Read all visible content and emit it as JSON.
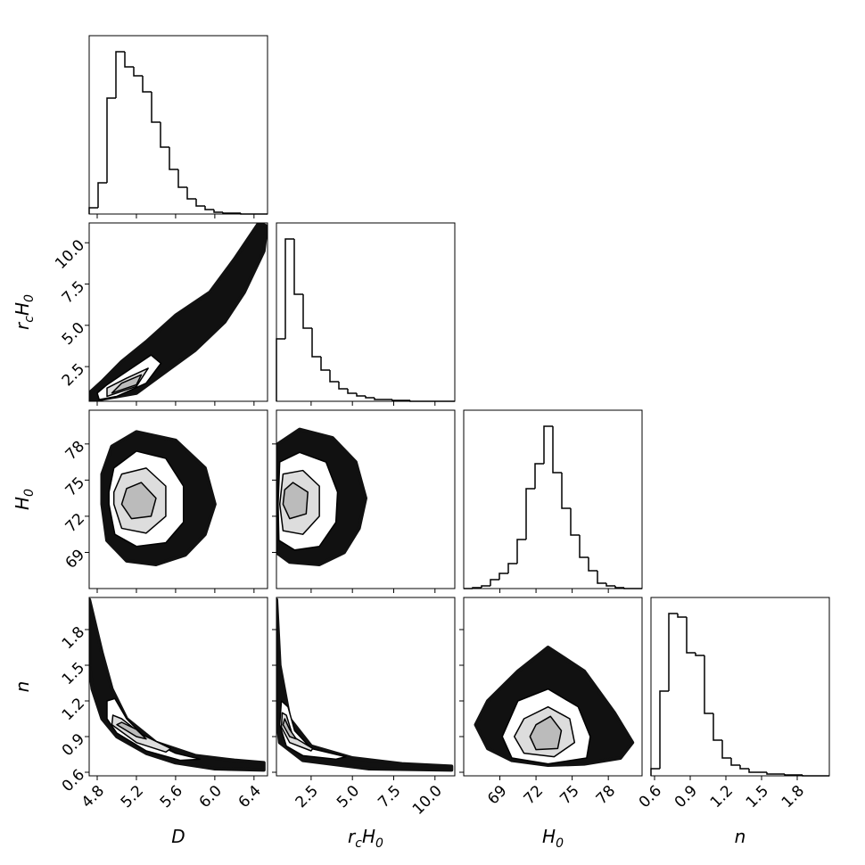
{
  "chart_data": {
    "type": "corner",
    "line_color": "#000000",
    "cloud_color": "#111111",
    "contour_fills": [
      "#ffffff",
      "#dddddd",
      "#bbbbbb"
    ],
    "parameters": [
      {
        "label": [
          {
            "text": "D"
          }
        ],
        "lim": [
          4.718,
          6.538
        ],
        "ticks": [
          4.8,
          5.2,
          5.6,
          {
            "value": 6,
            "label": "6.0"
          },
          6.4
        ],
        "hist": {
          "bins": [
            4.718,
            4.809,
            4.9,
            4.991,
            5.082,
            5.173,
            5.264,
            5.355,
            5.446,
            5.537,
            5.628,
            5.719,
            5.81,
            5.901,
            5.992,
            6.083,
            6.174,
            6.265,
            6.356,
            6.447,
            6.538
          ],
          "counts": [
            7,
            35,
            130,
            182,
            165,
            155,
            137,
            103,
            75,
            50,
            30,
            17,
            9,
            5,
            2,
            1,
            1,
            0,
            0,
            0
          ],
          "ylim": [
            0,
            200
          ]
        }
      },
      {
        "label": [
          {
            "text": "r",
            "sub": "c"
          },
          {
            "text": "H",
            "sub": "0"
          }
        ],
        "lim": [
          0.4,
          11.2
        ],
        "ticks": [
          2.5,
          {
            "value": 5,
            "label": "5.0"
          },
          7.5,
          {
            "value": 10,
            "label": "10.0"
          }
        ],
        "hist": {
          "bins": [
            0.4,
            0.94,
            1.48,
            2.02,
            2.56,
            3.1,
            3.64,
            4.18,
            4.72,
            5.26,
            5.8,
            6.34,
            6.88,
            7.42,
            7.96,
            8.5,
            9.04,
            9.58,
            10.12,
            10.66,
            11.2
          ],
          "counts": [
            70,
            182,
            120,
            82,
            50,
            35,
            22,
            14,
            9,
            6,
            4,
            2,
            2,
            1,
            1,
            0,
            0,
            0,
            0,
            0
          ],
          "ylim": [
            0,
            200
          ]
        }
      },
      {
        "label": [
          {
            "text": "H",
            "sub": "0"
          }
        ],
        "lim": [
          66,
          80.8
        ],
        "ticks": [
          69,
          72,
          75,
          78
        ],
        "hist": {
          "bins": [
            66,
            66.74,
            67.48,
            68.22,
            68.96,
            69.7,
            70.44,
            71.18,
            71.92,
            72.66,
            73.4,
            74.14,
            74.88,
            75.62,
            76.36,
            77.1,
            77.84,
            78.58,
            79.32,
            80.06,
            80.8
          ],
          "counts": [
            0,
            1,
            3,
            10,
            17,
            28,
            55,
            112,
            140,
            182,
            130,
            90,
            60,
            35,
            20,
            6,
            3,
            1,
            0,
            0
          ],
          "ylim": [
            0,
            200
          ]
        }
      },
      {
        "label": [
          {
            "text": "n"
          }
        ],
        "lim": [
          0.57,
          2.07
        ],
        "ticks": [
          0.6,
          0.9,
          1.2,
          1.5,
          1.8
        ],
        "hist": {
          "bins": [
            0.57,
            0.645,
            0.72,
            0.795,
            0.87,
            0.945,
            1.02,
            1.095,
            1.17,
            1.245,
            1.32,
            1.395,
            1.47,
            1.545,
            1.62,
            1.695,
            1.77,
            1.845,
            1.92,
            1.995,
            2.07
          ],
          "counts": [
            8,
            95,
            182,
            178,
            138,
            135,
            70,
            40,
            20,
            12,
            8,
            4,
            4,
            2,
            2,
            1,
            1,
            0,
            0,
            0
          ],
          "ylim": [
            0,
            200
          ]
        }
      }
    ],
    "pairs": [
      {
        "cloud": {
          "x": [
            4.72,
            5.2,
            5.5,
            5.8,
            6.1,
            6.3,
            6.5,
            6.53,
            6.45,
            6.2,
            5.95,
            5.6,
            5.3,
            5.05,
            4.85,
            4.72
          ],
          "y": [
            0.4,
            0.9,
            2.2,
            3.5,
            5.2,
            7,
            9.5,
            11,
            11.2,
            9,
            7,
            5.6,
            4,
            2.8,
            1.6,
            0.9
          ]
        },
        "contours": [
          {
            "x": [
              4.82,
              5,
              5.3,
              5.45,
              5.35,
              5.1,
              4.9,
              4.8
            ],
            "y": [
              0.5,
              0.7,
              1.5,
              2.7,
              3.2,
              2.2,
              1.4,
              0.9
            ]
          },
          {
            "x": [
              4.9,
              5.2,
              5.32,
              5.1,
              4.9
            ],
            "y": [
              0.7,
              1.3,
              2.4,
              1.8,
              1.2
            ]
          },
          {
            "x": [
              4.95,
              5.2,
              5.25,
              5.05
            ],
            "y": [
              0.9,
              1.4,
              2,
              1.5
            ]
          }
        ]
      },
      {
        "cloud": {
          "x": [
            4.85,
            4.9,
            5.1,
            5.4,
            5.7,
            5.9,
            6,
            5.9,
            5.6,
            5.2,
            4.95,
            4.85
          ],
          "y": [
            73,
            70,
            68.3,
            68,
            68.8,
            70.5,
            73,
            76,
            78.3,
            79,
            77.8,
            75.5
          ]
        },
        "contours": [
          {
            "x": [
              4.92,
              4.98,
              5.2,
              5.5,
              5.68,
              5.68,
              5.5,
              5.2,
              4.97,
              4.92
            ],
            "y": [
              73,
              70.5,
              69.5,
              69.8,
              71.5,
              74.5,
              76.8,
              77.4,
              76,
              74
            ]
          },
          {
            "x": [
              4.97,
              5.05,
              5.3,
              5.5,
              5.5,
              5.3,
              5.05,
              4.97
            ],
            "y": [
              73,
              71,
              70.6,
              72,
              74.5,
              76,
              75.5,
              74
            ]
          },
          {
            "x": [
              5.05,
              5.15,
              5.35,
              5.4,
              5.25,
              5.1
            ],
            "y": [
              73,
              71.8,
              72,
              73.5,
              74.8,
              74.3
            ]
          }
        ]
      },
      {
        "cloud": {
          "x": [
            0.4,
            1.2,
            3,
            4.5,
            5.4,
            5.8,
            5.2,
            3.8,
            1.8,
            0.5,
            0.4
          ],
          "y": [
            69,
            68.2,
            68,
            69,
            71,
            73.5,
            76.5,
            78.5,
            79.2,
            78,
            75
          ]
        },
        "contours": [
          {
            "x": [
              0.5,
              0.55,
              1.5,
              3,
              4,
              4.1,
              3.4,
              1.8,
              0.6
            ],
            "y": [
              73,
              70,
              69.2,
              69.5,
              71.5,
              74,
              76.5,
              77.3,
              76.5
            ]
          },
          {
            "x": [
              0.6,
              0.8,
              2,
              3,
              3,
              2,
              0.8
            ],
            "y": [
              73,
              70.8,
              70.5,
              72,
              74.5,
              75.8,
              75.5
            ]
          },
          {
            "x": [
              0.8,
              1.2,
              2.2,
              2.3,
              1.4,
              0.9
            ],
            "y": [
              73,
              71.8,
              72.2,
              74,
              74.8,
              74.2
            ]
          }
        ]
      },
      {
        "cloud": {
          "x": [
            4.72,
            4.85,
            4.95,
            5.1,
            5.4,
            5.8,
            6.2,
            6.5,
            6.5,
            6,
            5.6,
            5.3,
            5,
            4.85,
            4.75,
            4.72
          ],
          "y": [
            2.05,
            1.6,
            1.3,
            1.05,
            0.85,
            0.74,
            0.7,
            0.68,
            0.62,
            0.63,
            0.68,
            0.76,
            0.9,
            1.05,
            1.3,
            1.5
          ]
        },
        "contours": [
          {
            "x": [
              4.9,
              5,
              5.3,
              5.65,
              5.85,
              5.6,
              5.3,
              5.1,
              4.98,
              4.9
            ],
            "y": [
              1.05,
              0.93,
              0.78,
              0.7,
              0.71,
              0.76,
              0.88,
              1.05,
              1.22,
              1.2
            ]
          },
          {
            "x": [
              4.95,
              5.2,
              5.5,
              5.55,
              5.25,
              5.05,
              4.96
            ],
            "y": [
              1,
              0.85,
              0.77,
              0.8,
              0.92,
              1.05,
              1.08
            ]
          },
          {
            "x": [
              5,
              5.2,
              5.3,
              5.2,
              5.05
            ],
            "y": [
              1,
              0.9,
              0.88,
              0.96,
              1.02
            ]
          }
        ]
      },
      {
        "cloud": {
          "x": [
            0.4,
            0.6,
            1.2,
            2.5,
            5,
            8,
            11,
            11,
            6,
            2,
            0.6,
            0.4
          ],
          "y": [
            2.05,
            1.5,
            1.05,
            0.82,
            0.72,
            0.67,
            0.65,
            0.62,
            0.63,
            0.7,
            0.85,
            1.1
          ]
        },
        "contours": [
          {
            "x": [
              0.6,
              1,
              2,
              4,
              4.6,
              2.5,
              1.5,
              1.1,
              0.7
            ],
            "y": [
              1,
              0.82,
              0.74,
              0.71,
              0.73,
              0.8,
              0.95,
              1.15,
              1.2
            ]
          },
          {
            "x": [
              0.7,
              1.2,
              2.5,
              2.6,
              1.4,
              1,
              0.75
            ],
            "y": [
              0.98,
              0.85,
              0.78,
              0.8,
              0.9,
              1.08,
              1.1
            ]
          },
          {
            "x": [
              0.8,
              1.2,
              1.6,
              1.2,
              0.9
            ],
            "y": [
              1,
              0.9,
              0.88,
              0.96,
              1.05
            ]
          }
        ]
      },
      {
        "cloud": {
          "x": [
            67,
            68,
            70,
            73,
            76,
            79,
            80,
            78.5,
            76,
            73,
            70.5,
            68
          ],
          "y": [
            1,
            0.8,
            0.7,
            0.66,
            0.67,
            0.72,
            0.85,
            1.1,
            1.45,
            1.65,
            1.45,
            1.2
          ]
        },
        "contours": [
          {
            "x": [
              69.2,
              70,
              73,
              76.2,
              76.5,
              75.5,
              73,
              70.5
            ],
            "y": [
              0.9,
              0.72,
              0.67,
              0.72,
              0.9,
              1.15,
              1.3,
              1.2
            ]
          },
          {
            "x": [
              70.2,
              71,
              73.5,
              75.2,
              74.8,
              73,
              71
            ],
            "y": [
              0.9,
              0.76,
              0.73,
              0.85,
              1.05,
              1.15,
              1.05
            ]
          },
          {
            "x": [
              71.5,
              72,
              73.8,
              74.1,
              73.2,
              72
            ],
            "y": [
              0.9,
              0.79,
              0.8,
              0.95,
              1.07,
              1
            ]
          }
        ]
      }
    ]
  }
}
